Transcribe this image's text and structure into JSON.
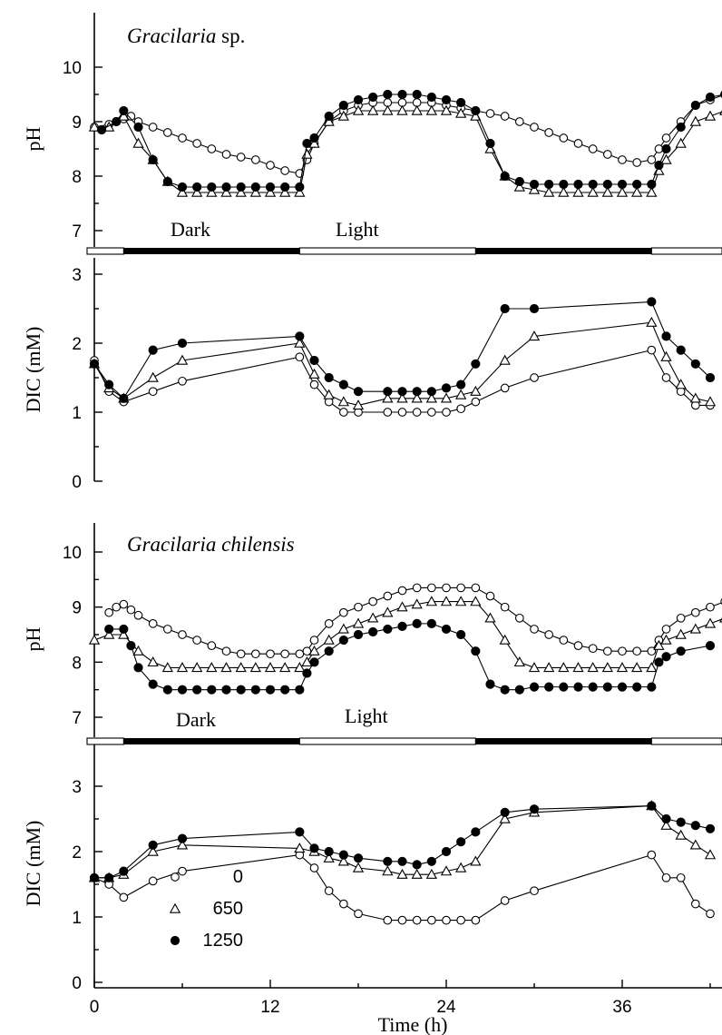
{
  "chart_data": [
    {
      "type": "line",
      "title": "Gracilaria",
      "title_suffix": "sp.",
      "ylabel": "pH",
      "ylim": [
        6.8,
        10.9
      ],
      "yticks": [
        7,
        8,
        9,
        10
      ],
      "xlim": [
        -0.5,
        45
      ],
      "series": [
        {
          "name": "0",
          "marker": "circle-open",
          "x": [
            0,
            1,
            2,
            2.5,
            3,
            4,
            5,
            6,
            7,
            8,
            9,
            10,
            11,
            12,
            13,
            14,
            14.5,
            15,
            16,
            17,
            18,
            19,
            20,
            21,
            22,
            23,
            24,
            25,
            26,
            27,
            28,
            29,
            30,
            31,
            32,
            33,
            34,
            35,
            36,
            37,
            38,
            38.5,
            39,
            40,
            41,
            42,
            43
          ],
          "y": [
            8.9,
            8.95,
            9.05,
            9.1,
            9.0,
            8.9,
            8.8,
            8.7,
            8.6,
            8.5,
            8.4,
            8.35,
            8.3,
            8.2,
            8.1,
            8.05,
            8.3,
            8.6,
            9.0,
            9.2,
            9.3,
            9.35,
            9.35,
            9.35,
            9.35,
            9.35,
            9.3,
            9.25,
            9.2,
            9.15,
            9.1,
            9.0,
            8.9,
            8.8,
            8.7,
            8.6,
            8.5,
            8.4,
            8.3,
            8.25,
            8.3,
            8.5,
            8.7,
            9.0,
            9.3,
            9.4,
            9.5
          ]
        },
        {
          "name": "650",
          "marker": "triangle-open",
          "x": [
            0,
            1,
            2,
            3,
            4,
            5,
            6,
            7,
            8,
            9,
            10,
            11,
            12,
            13,
            14,
            14.5,
            15,
            16,
            17,
            18,
            19,
            20,
            21,
            22,
            23,
            24,
            25,
            26,
            27,
            28,
            29,
            30,
            31,
            32,
            33,
            34,
            35,
            36,
            37,
            38,
            38.5,
            39,
            40,
            41,
            42,
            43
          ],
          "y": [
            8.9,
            8.9,
            9.1,
            8.6,
            8.3,
            7.9,
            7.7,
            7.7,
            7.7,
            7.7,
            7.7,
            7.7,
            7.7,
            7.7,
            7.7,
            8.4,
            8.6,
            9.0,
            9.1,
            9.2,
            9.2,
            9.2,
            9.2,
            9.2,
            9.2,
            9.2,
            9.15,
            9.1,
            8.5,
            8.0,
            7.8,
            7.75,
            7.7,
            7.7,
            7.7,
            7.7,
            7.7,
            7.7,
            7.7,
            7.7,
            8.1,
            8.3,
            8.6,
            9.0,
            9.1,
            9.2
          ]
        },
        {
          "name": "1250",
          "marker": "circle-filled",
          "x": [
            0.5,
            1.5,
            2,
            3,
            4,
            5,
            6,
            7,
            8,
            9,
            10,
            11,
            12,
            13,
            14,
            14.5,
            15,
            16,
            17,
            18,
            19,
            20,
            21,
            22,
            23,
            24,
            25,
            26,
            27,
            28,
            29,
            30,
            31,
            32,
            33,
            34,
            35,
            36,
            37,
            38,
            38.5,
            39,
            40,
            41,
            42,
            43
          ],
          "y": [
            8.85,
            9.0,
            9.2,
            8.9,
            8.3,
            7.9,
            7.8,
            7.8,
            7.8,
            7.8,
            7.8,
            7.8,
            7.8,
            7.8,
            7.8,
            8.6,
            8.7,
            9.1,
            9.3,
            9.4,
            9.45,
            9.5,
            9.5,
            9.5,
            9.45,
            9.4,
            9.35,
            9.2,
            8.6,
            8.0,
            7.9,
            7.85,
            7.85,
            7.85,
            7.85,
            7.85,
            7.85,
            7.85,
            7.85,
            7.85,
            8.2,
            8.5,
            8.9,
            9.3,
            9.45,
            9.5
          ]
        }
      ],
      "phase_labels": [
        "Dark",
        "Light"
      ]
    },
    {
      "type": "line",
      "title": "",
      "ylabel": "DIC (mM)",
      "ylim": [
        -0.1,
        3.1
      ],
      "yticks": [
        0,
        1,
        2,
        3
      ],
      "xlim": [
        -0.5,
        45
      ],
      "series": [
        {
          "name": "0",
          "marker": "circle-open",
          "x": [
            0,
            1,
            2,
            4,
            6,
            14,
            15,
            16,
            17,
            18,
            20,
            21,
            22,
            23,
            24,
            25,
            26,
            28,
            30,
            38,
            39,
            40,
            41,
            42
          ],
          "y": [
            1.75,
            1.3,
            1.15,
            1.3,
            1.45,
            1.8,
            1.4,
            1.15,
            1.0,
            1.0,
            1.0,
            1.0,
            1.0,
            1.0,
            1.0,
            1.05,
            1.15,
            1.35,
            1.5,
            1.9,
            1.5,
            1.3,
            1.1,
            1.1
          ]
        },
        {
          "name": "650",
          "marker": "triangle-open",
          "x": [
            0,
            1,
            2,
            4,
            6,
            14,
            15,
            16,
            17,
            18,
            20,
            21,
            22,
            23,
            24,
            25,
            26,
            28,
            30,
            38,
            39,
            40,
            41,
            42
          ],
          "y": [
            1.7,
            1.35,
            1.2,
            1.5,
            1.75,
            2.0,
            1.55,
            1.25,
            1.15,
            1.1,
            1.2,
            1.2,
            1.2,
            1.2,
            1.2,
            1.25,
            1.3,
            1.75,
            2.1,
            2.3,
            1.8,
            1.4,
            1.2,
            1.15
          ]
        },
        {
          "name": "1250",
          "marker": "circle-filled",
          "x": [
            0,
            1,
            2,
            4,
            6,
            14,
            15,
            16,
            17,
            18,
            20,
            21,
            22,
            23,
            24,
            25,
            26,
            28,
            30,
            38,
            39,
            40,
            41,
            42
          ],
          "y": [
            1.7,
            1.4,
            1.2,
            1.9,
            2.0,
            2.1,
            1.75,
            1.5,
            1.4,
            1.3,
            1.3,
            1.3,
            1.3,
            1.3,
            1.35,
            1.4,
            1.7,
            2.5,
            2.5,
            2.6,
            2.1,
            1.9,
            1.7,
            1.5
          ]
        }
      ]
    },
    {
      "type": "line",
      "title": "Gracilaria chilensis",
      "ylabel": "pH",
      "ylim": [
        6.8,
        10.9
      ],
      "yticks": [
        7,
        8,
        9,
        10
      ],
      "xlim": [
        -0.5,
        45
      ],
      "series": [
        {
          "name": "0",
          "marker": "circle-open",
          "x": [
            1,
            1.5,
            2,
            2.5,
            3,
            4,
            5,
            6,
            7,
            8,
            9,
            10,
            11,
            12,
            13,
            14,
            14.5,
            15,
            16,
            17,
            18,
            19,
            20,
            21,
            22,
            23,
            24,
            25,
            26,
            27,
            28,
            29,
            30,
            31,
            32,
            33,
            34,
            35,
            36,
            37,
            38,
            38.5,
            39,
            40,
            41,
            42,
            43,
            44
          ],
          "y": [
            8.9,
            9.0,
            9.05,
            8.95,
            8.85,
            8.7,
            8.6,
            8.5,
            8.4,
            8.3,
            8.2,
            8.15,
            8.15,
            8.15,
            8.15,
            8.15,
            8.2,
            8.4,
            8.7,
            8.9,
            9.0,
            9.1,
            9.2,
            9.3,
            9.35,
            9.35,
            9.35,
            9.35,
            9.35,
            9.2,
            9.0,
            8.8,
            8.6,
            8.5,
            8.4,
            8.3,
            8.25,
            8.2,
            8.2,
            8.2,
            8.2,
            8.4,
            8.6,
            8.8,
            8.9,
            9.0,
            9.1,
            9.2
          ]
        },
        {
          "name": "650",
          "marker": "triangle-open",
          "x": [
            0,
            1,
            2,
            3,
            4,
            5,
            6,
            7,
            8,
            9,
            10,
            11,
            12,
            13,
            14,
            14.5,
            15,
            16,
            17,
            18,
            19,
            20,
            21,
            22,
            23,
            24,
            25,
            26,
            27,
            28,
            29,
            30,
            31,
            32,
            33,
            34,
            35,
            36,
            37,
            38,
            38.5,
            39,
            40,
            41,
            42,
            43,
            44
          ],
          "y": [
            8.4,
            8.5,
            8.5,
            8.2,
            8.0,
            7.9,
            7.9,
            7.9,
            7.9,
            7.9,
            7.9,
            7.9,
            7.9,
            7.9,
            7.9,
            8.0,
            8.2,
            8.4,
            8.6,
            8.7,
            8.8,
            8.9,
            9.0,
            9.05,
            9.1,
            9.1,
            9.1,
            9.1,
            8.8,
            8.4,
            8.0,
            7.9,
            7.9,
            7.9,
            7.9,
            7.9,
            7.9,
            7.9,
            7.9,
            7.9,
            8.3,
            8.4,
            8.5,
            8.6,
            8.7,
            8.8,
            9.0
          ]
        },
        {
          "name": "1250",
          "marker": "circle-filled",
          "x": [
            1,
            2,
            2.5,
            3,
            4,
            5,
            6,
            7,
            8,
            9,
            10,
            11,
            12,
            13,
            14,
            14.5,
            15,
            16,
            17,
            18,
            19,
            20,
            21,
            22,
            23,
            24,
            25,
            26,
            27,
            28,
            29,
            30,
            31,
            32,
            33,
            34,
            35,
            36,
            37,
            38,
            38.5,
            39,
            40,
            42
          ],
          "y": [
            8.6,
            8.6,
            8.3,
            7.9,
            7.6,
            7.5,
            7.5,
            7.5,
            7.5,
            7.5,
            7.5,
            7.5,
            7.5,
            7.5,
            7.5,
            7.8,
            8.0,
            8.2,
            8.4,
            8.5,
            8.55,
            8.6,
            8.65,
            8.7,
            8.7,
            8.6,
            8.5,
            8.2,
            7.6,
            7.5,
            7.5,
            7.55,
            7.55,
            7.55,
            7.55,
            7.55,
            7.55,
            7.55,
            7.55,
            7.55,
            8.0,
            8.1,
            8.2,
            8.3
          ]
        }
      ],
      "phase_labels": [
        "Dark",
        "Light"
      ]
    },
    {
      "type": "line",
      "title": "",
      "ylabel": "DIC (mM)",
      "xlabel": "Time (h)",
      "ylim": [
        -0.05,
        3.1
      ],
      "yticks": [
        0,
        1,
        2,
        3
      ],
      "xlim": [
        -0.5,
        45
      ],
      "xticks": [
        0,
        12,
        24,
        36
      ],
      "series": [
        {
          "name": "0",
          "marker": "circle-open",
          "x": [
            0,
            1,
            2,
            4,
            6,
            14,
            15,
            16,
            17,
            18,
            20,
            21,
            22,
            23,
            24,
            25,
            26,
            28,
            30,
            38,
            39,
            40,
            41,
            42
          ],
          "y": [
            1.6,
            1.5,
            1.3,
            1.55,
            1.7,
            1.95,
            1.75,
            1.4,
            1.2,
            1.05,
            0.95,
            0.95,
            0.95,
            0.95,
            0.95,
            0.95,
            0.95,
            1.25,
            1.4,
            1.95,
            1.6,
            1.6,
            1.2,
            1.05
          ]
        },
        {
          "name": "650",
          "marker": "triangle-open",
          "x": [
            0,
            1,
            2,
            4,
            6,
            14,
            15,
            16,
            17,
            18,
            20,
            21,
            22,
            23,
            24,
            25,
            26,
            28,
            30,
            38,
            39,
            40,
            41,
            42
          ],
          "y": [
            1.6,
            1.6,
            1.65,
            2.0,
            2.1,
            2.05,
            2.0,
            1.9,
            1.85,
            1.75,
            1.7,
            1.65,
            1.65,
            1.65,
            1.7,
            1.75,
            1.85,
            2.5,
            2.6,
            2.7,
            2.4,
            2.25,
            2.1,
            1.95
          ]
        },
        {
          "name": "1250",
          "marker": "circle-filled",
          "x": [
            0,
            1,
            2,
            4,
            6,
            14,
            15,
            16,
            17,
            18,
            20,
            21,
            22,
            23,
            24,
            25,
            26,
            28,
            30,
            38,
            39,
            40,
            41,
            42
          ],
          "y": [
            1.6,
            1.6,
            1.7,
            2.1,
            2.2,
            2.3,
            2.05,
            2.0,
            1.95,
            1.9,
            1.85,
            1.85,
            1.8,
            1.85,
            2.0,
            2.15,
            2.3,
            2.6,
            2.65,
            2.7,
            2.5,
            2.45,
            2.4,
            2.35
          ]
        }
      ],
      "legend": {
        "placement": "bottom-left",
        "entries": [
          "0",
          "650",
          "1250"
        ]
      }
    }
  ],
  "photoperiod": [
    {
      "from": 0,
      "to": 2,
      "state": "light"
    },
    {
      "from": 2,
      "to": 14,
      "state": "dark"
    },
    {
      "from": 14,
      "to": 26,
      "state": "light"
    },
    {
      "from": 26,
      "to": 38,
      "state": "dark"
    },
    {
      "from": 38,
      "to": 45,
      "state": "light"
    }
  ]
}
